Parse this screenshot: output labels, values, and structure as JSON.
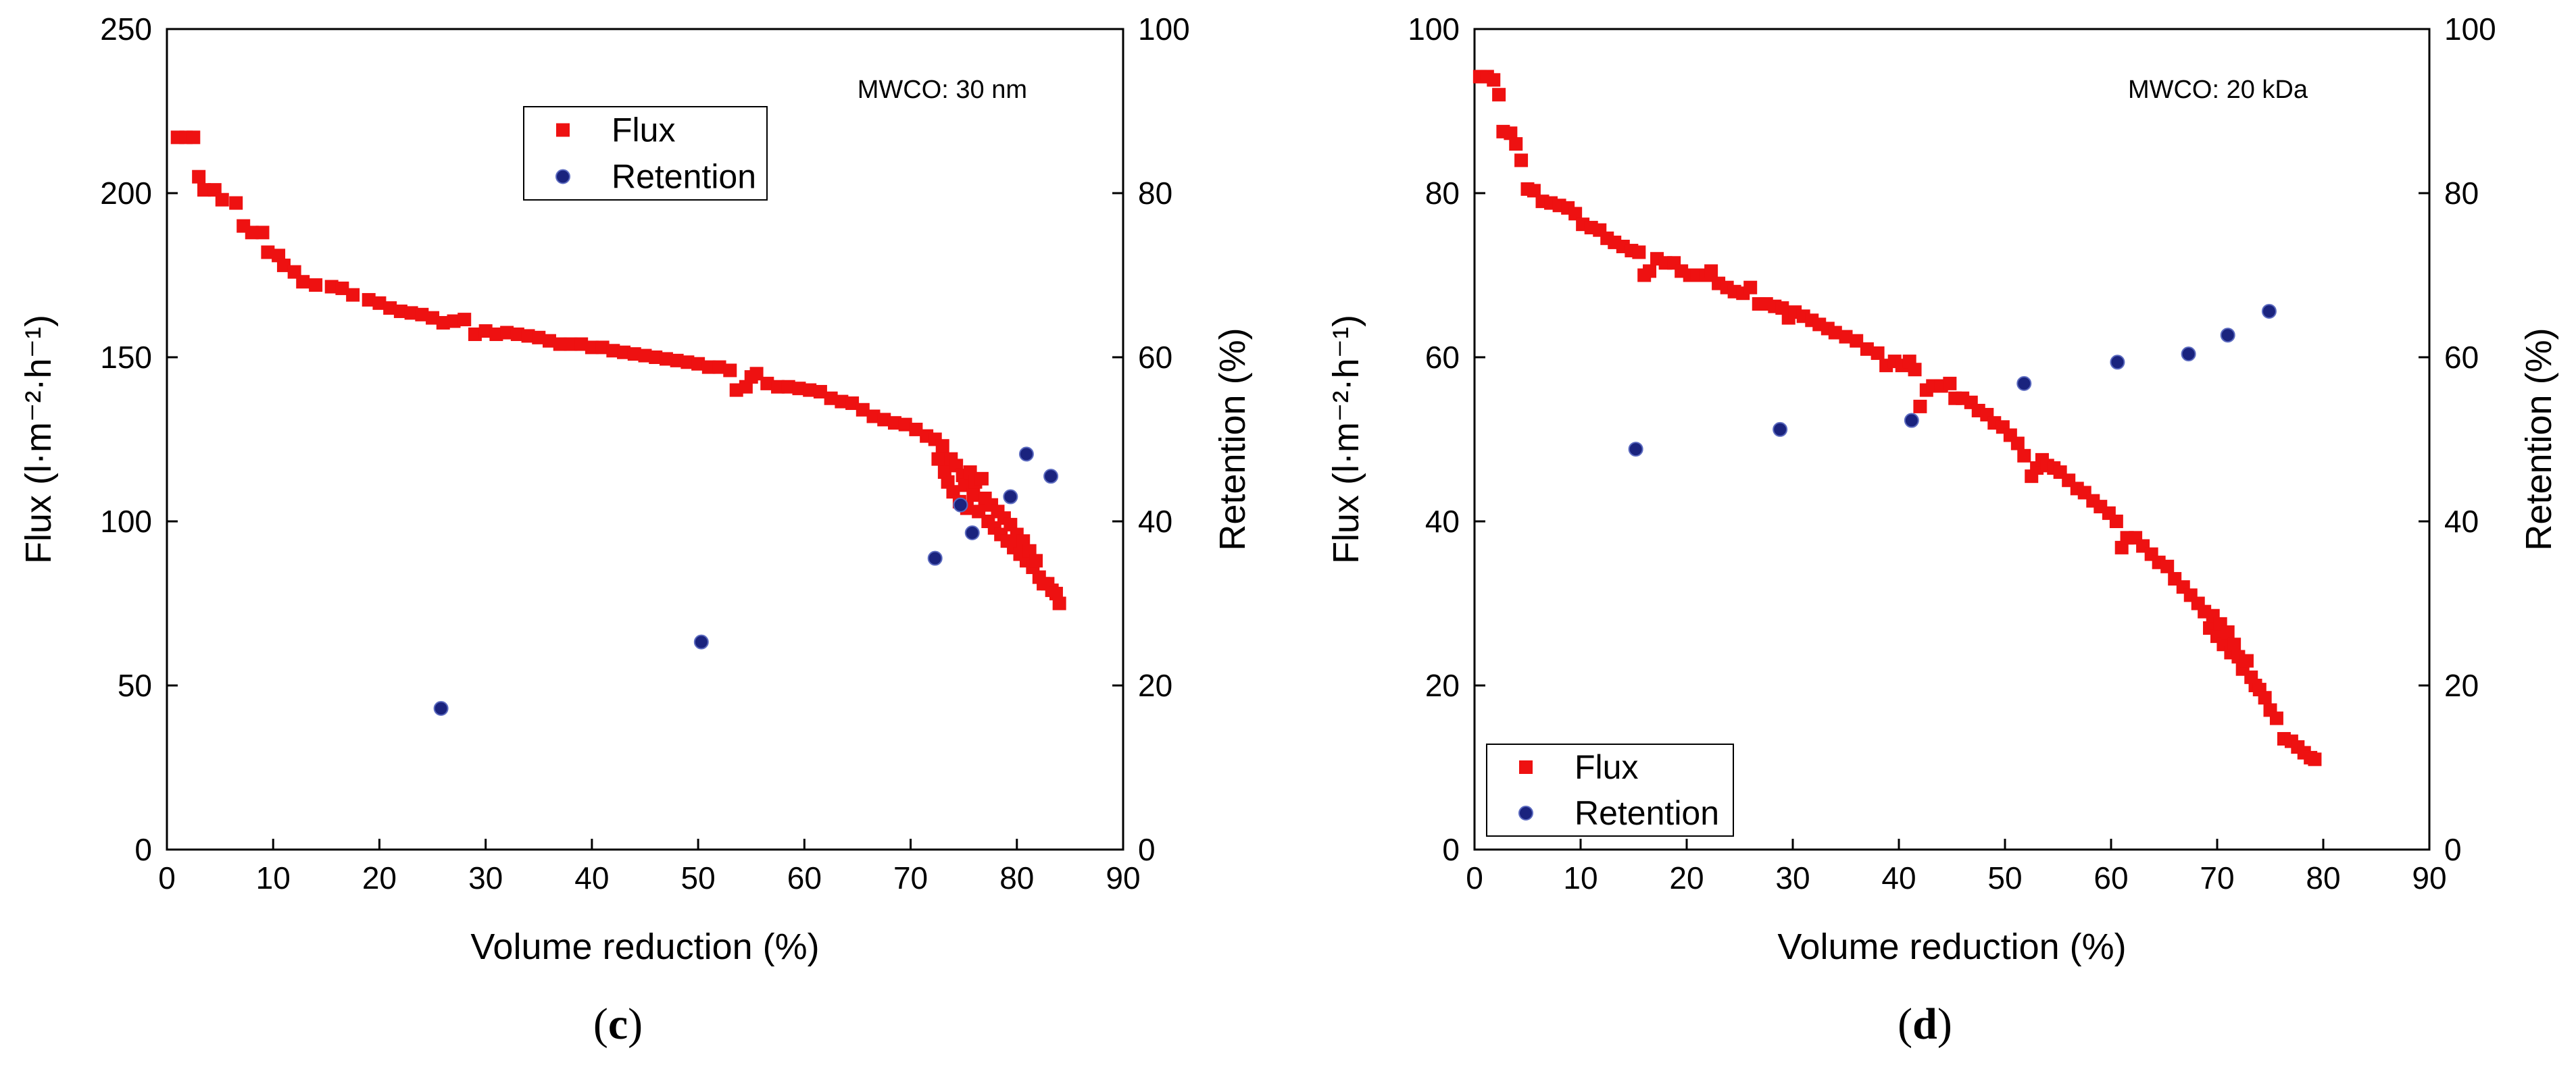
{
  "colors": {
    "flux": "#ee1111",
    "retention": "#1a237e",
    "axis": "#000000"
  },
  "chart_data": [
    {
      "type": "scatter",
      "panel_label": "c",
      "annotation": "MWCO: 30 nm",
      "xlabel": "Volume reduction (%)",
      "ylabel": "Flux (l·m⁻²·h⁻¹)",
      "y2label": "Retention (%)",
      "xlim": [
        0,
        90
      ],
      "ylim": [
        0,
        250
      ],
      "y2lim": [
        0,
        100
      ],
      "xticks": [
        "0",
        "10",
        "20",
        "30",
        "40",
        "50",
        "60",
        "70",
        "80",
        "90"
      ],
      "yticks": [
        "0",
        "50",
        "100",
        "150",
        "200",
        "250"
      ],
      "y2ticks": [
        "0",
        "20",
        "40",
        "60",
        "80",
        "100"
      ],
      "legend": {
        "position": "top-center",
        "items": [
          "Flux",
          "Retention"
        ]
      },
      "series": [
        {
          "name": "Flux",
          "axis": "left",
          "marker": "square",
          "points": [
            [
              1,
              217
            ],
            [
              1.8,
              217
            ],
            [
              2.5,
              217
            ],
            [
              3,
              205
            ],
            [
              3.5,
              201
            ],
            [
              4.5,
              201
            ],
            [
              5.2,
              198
            ],
            [
              6.5,
              197
            ],
            [
              7.2,
              190
            ],
            [
              8,
              188
            ],
            [
              9,
              188
            ],
            [
              9.5,
              182
            ],
            [
              10.5,
              181
            ],
            [
              11,
              178
            ],
            [
              12,
              176
            ],
            [
              12.8,
              173
            ],
            [
              14,
              172
            ],
            [
              15.5,
              171.5
            ],
            [
              16.5,
              171
            ],
            [
              17.5,
              169
            ],
            [
              19,
              167.5
            ],
            [
              20,
              166.5
            ],
            [
              21,
              165
            ],
            [
              22,
              164
            ],
            [
              23,
              163.5
            ],
            [
              24,
              163
            ],
            [
              25,
              162
            ],
            [
              26,
              160.5
            ],
            [
              27,
              161
            ],
            [
              28,
              161.5
            ],
            [
              29,
              157
            ],
            [
              30,
              158
            ],
            [
              31,
              157
            ],
            [
              32,
              157.5
            ],
            [
              33,
              157
            ],
            [
              34,
              156.5
            ],
            [
              35,
              156
            ],
            [
              36,
              155
            ],
            [
              37,
              154
            ],
            [
              38,
              154
            ],
            [
              39,
              154
            ],
            [
              40,
              153
            ],
            [
              41,
              153
            ],
            [
              42,
              152
            ],
            [
              43,
              151.5
            ],
            [
              44,
              151
            ],
            [
              45,
              150.5
            ],
            [
              46,
              150
            ],
            [
              47,
              149.5
            ],
            [
              48,
              149
            ],
            [
              49,
              148.5
            ],
            [
              50,
              148
            ],
            [
              51,
              147
            ],
            [
              52,
              147
            ],
            [
              53,
              146
            ],
            [
              53.6,
              140
            ],
            [
              54.5,
              141
            ],
            [
              55,
              144
            ],
            [
              55.5,
              145
            ],
            [
              56.5,
              142
            ],
            [
              57.5,
              141
            ],
            [
              58.5,
              141
            ],
            [
              59.5,
              140.5
            ],
            [
              60.5,
              140
            ],
            [
              61.5,
              139.5
            ],
            [
              62.5,
              137.5
            ],
            [
              63.5,
              136.5
            ],
            [
              64.5,
              136
            ],
            [
              65.5,
              134
            ],
            [
              66.5,
              132
            ],
            [
              67.5,
              131
            ],
            [
              68.5,
              130
            ],
            [
              69.5,
              129.5
            ],
            [
              70.5,
              128
            ],
            [
              71.5,
              126
            ],
            [
              72.3,
              125
            ],
            [
              72.6,
              119
            ],
            [
              73,
              123
            ],
            [
              73.2,
              115
            ],
            [
              73.5,
              112
            ],
            [
              73.8,
              119
            ],
            [
              74,
              109
            ],
            [
              74.3,
              117
            ],
            [
              74.6,
              106
            ],
            [
              74.9,
              114
            ],
            [
              75.1,
              111
            ],
            [
              75.3,
              104
            ],
            [
              75.6,
              115
            ],
            [
              75.9,
              108
            ],
            [
              76.1,
              112
            ],
            [
              76.4,
              103
            ],
            [
              76.7,
              113
            ],
            [
              77,
              107
            ],
            [
              77.3,
              100
            ],
            [
              77.6,
              105
            ],
            [
              77.9,
              98
            ],
            [
              78.2,
              103
            ],
            [
              78.5,
              96
            ],
            [
              78.8,
              101
            ],
            [
              79.1,
              94
            ],
            [
              79.4,
              99
            ],
            [
              79.7,
              92
            ],
            [
              80,
              96
            ],
            [
              80.3,
              90
            ],
            [
              80.6,
              94
            ],
            [
              80.9,
              88
            ],
            [
              81.2,
              91
            ],
            [
              81.5,
              86
            ],
            [
              81.8,
              88
            ],
            [
              82.1,
              83
            ],
            [
              82.5,
              81
            ],
            [
              82.9,
              81
            ],
            [
              83.3,
              79
            ],
            [
              83.7,
              78
            ],
            [
              84,
              75
            ]
          ]
        },
        {
          "name": "Retention",
          "axis": "right",
          "marker": "circle",
          "points": [
            [
              25.8,
              17.2
            ],
            [
              50.3,
              25.3
            ],
            [
              72.3,
              35.5
            ],
            [
              74.7,
              42
            ],
            [
              75.8,
              38.6
            ],
            [
              79.4,
              43
            ],
            [
              80.9,
              48.2
            ],
            [
              83.2,
              45.5
            ]
          ]
        }
      ]
    },
    {
      "type": "scatter",
      "panel_label": "d",
      "annotation": "MWCO: 20 kDa",
      "xlabel": "Volume reduction (%)",
      "ylabel": "Flux (l·m⁻²·h⁻¹)",
      "y2label": "Retention (%)",
      "xlim": [
        0,
        90
      ],
      "ylim": [
        0,
        100
      ],
      "y2lim": [
        0,
        100
      ],
      "xticks": [
        "0",
        "10",
        "20",
        "30",
        "40",
        "50",
        "60",
        "70",
        "80",
        "90"
      ],
      "yticks": [
        "0",
        "20",
        "40",
        "60",
        "80",
        "100"
      ],
      "y2ticks": [
        "0",
        "20",
        "40",
        "60",
        "80",
        "100"
      ],
      "legend": {
        "position": "bottom-left",
        "items": [
          "Flux",
          "Retention"
        ]
      },
      "series": [
        {
          "name": "Flux",
          "axis": "left",
          "marker": "square",
          "points": [
            [
              0.5,
              94.2
            ],
            [
              1.2,
              94.2
            ],
            [
              1.8,
              93.8
            ],
            [
              2.3,
              92
            ],
            [
              2.7,
              87.5
            ],
            [
              3.4,
              87.3
            ],
            [
              3.9,
              86
            ],
            [
              4.4,
              84
            ],
            [
              5,
              80.5
            ],
            [
              5.6,
              80.3
            ],
            [
              6.4,
              79
            ],
            [
              7.2,
              78.8
            ],
            [
              8,
              78.5
            ],
            [
              8.8,
              78.2
            ],
            [
              9.5,
              77.5
            ],
            [
              10.2,
              76.2
            ],
            [
              11,
              75.8
            ],
            [
              11.8,
              75.5
            ],
            [
              12.5,
              74.5
            ],
            [
              13.2,
              74
            ],
            [
              14,
              73.5
            ],
            [
              14.8,
              73
            ],
            [
              15.5,
              72.8
            ],
            [
              16,
              70
            ],
            [
              16.5,
              70.5
            ],
            [
              17.2,
              72
            ],
            [
              18,
              71.5
            ],
            [
              18.8,
              71.5
            ],
            [
              19.5,
              70.5
            ],
            [
              20.3,
              70
            ],
            [
              21,
              70
            ],
            [
              21.8,
              70
            ],
            [
              22.3,
              70.5
            ],
            [
              23,
              69
            ],
            [
              23.8,
              68.5
            ],
            [
              24.5,
              68
            ],
            [
              25.3,
              67.8
            ],
            [
              26,
              68.5
            ],
            [
              26.8,
              66.5
            ],
            [
              27.5,
              66.5
            ],
            [
              28.3,
              66.2
            ],
            [
              29,
              66
            ],
            [
              29.6,
              64.8
            ],
            [
              30.2,
              65.5
            ],
            [
              31,
              65
            ],
            [
              31.8,
              64.5
            ],
            [
              32.5,
              64
            ],
            [
              33.3,
              63.5
            ],
            [
              34,
              63
            ],
            [
              35,
              62.5
            ],
            [
              36,
              62
            ],
            [
              37,
              61
            ],
            [
              38,
              60.5
            ],
            [
              38.8,
              59
            ],
            [
              39.6,
              59.5
            ],
            [
              40.3,
              59
            ],
            [
              41,
              59.5
            ],
            [
              41.5,
              58.5
            ],
            [
              42,
              54
            ],
            [
              42.6,
              56
            ],
            [
              43.2,
              56.5
            ],
            [
              44,
              56.5
            ],
            [
              44.8,
              56.8
            ],
            [
              45.3,
              55
            ],
            [
              46,
              55
            ],
            [
              46.8,
              54.5
            ],
            [
              47.5,
              53.5
            ],
            [
              48.3,
              53
            ],
            [
              49,
              52
            ],
            [
              49.8,
              51.5
            ],
            [
              50.5,
              50.5
            ],
            [
              51.2,
              49.5
            ],
            [
              51.8,
              48
            ],
            [
              52.5,
              45.5
            ],
            [
              53,
              46.5
            ],
            [
              53.5,
              47.5
            ],
            [
              54,
              46.8
            ],
            [
              54.6,
              46.5
            ],
            [
              55.2,
              46
            ],
            [
              56,
              45
            ],
            [
              56.8,
              44
            ],
            [
              57.5,
              43.5
            ],
            [
              58.3,
              42.5
            ],
            [
              59,
              41.8
            ],
            [
              59.8,
              41
            ],
            [
              60.5,
              40
            ],
            [
              61,
              36.8
            ],
            [
              61.5,
              38
            ],
            [
              62.3,
              38
            ],
            [
              63,
              37
            ],
            [
              63.8,
              36
            ],
            [
              64.5,
              35
            ],
            [
              65.3,
              34.5
            ],
            [
              66,
              33
            ],
            [
              66.8,
              32
            ],
            [
              67.5,
              31
            ],
            [
              68.2,
              30
            ],
            [
              68.8,
              29
            ],
            [
              69.3,
              27
            ],
            [
              69.6,
              28.5
            ],
            [
              70,
              26
            ],
            [
              70.3,
              27.5
            ],
            [
              70.6,
              25
            ],
            [
              71,
              26.5
            ],
            [
              71.3,
              24
            ],
            [
              71.6,
              25
            ],
            [
              72,
              23.5
            ],
            [
              72.4,
              22
            ],
            [
              72.8,
              23
            ],
            [
              73.2,
              21
            ],
            [
              73.6,
              20
            ],
            [
              74,
              19.5
            ],
            [
              74.5,
              18.5
            ],
            [
              75,
              17
            ],
            [
              75.6,
              16
            ],
            [
              76.3,
              13.5
            ],
            [
              77,
              13.2
            ],
            [
              77.6,
              12.5
            ],
            [
              78.2,
              11.8
            ],
            [
              78.8,
              11.2
            ],
            [
              79.2,
              11
            ]
          ]
        },
        {
          "name": "Retention",
          "axis": "right",
          "marker": "circle",
          "points": [
            [
              15.2,
              48.8
            ],
            [
              28.8,
              51.2
            ],
            [
              41.2,
              52.3
            ],
            [
              51.8,
              56.8
            ],
            [
              60.6,
              59.4
            ],
            [
              67.3,
              60.4
            ],
            [
              71,
              62.7
            ],
            [
              74.9,
              65.6
            ]
          ]
        }
      ]
    }
  ]
}
